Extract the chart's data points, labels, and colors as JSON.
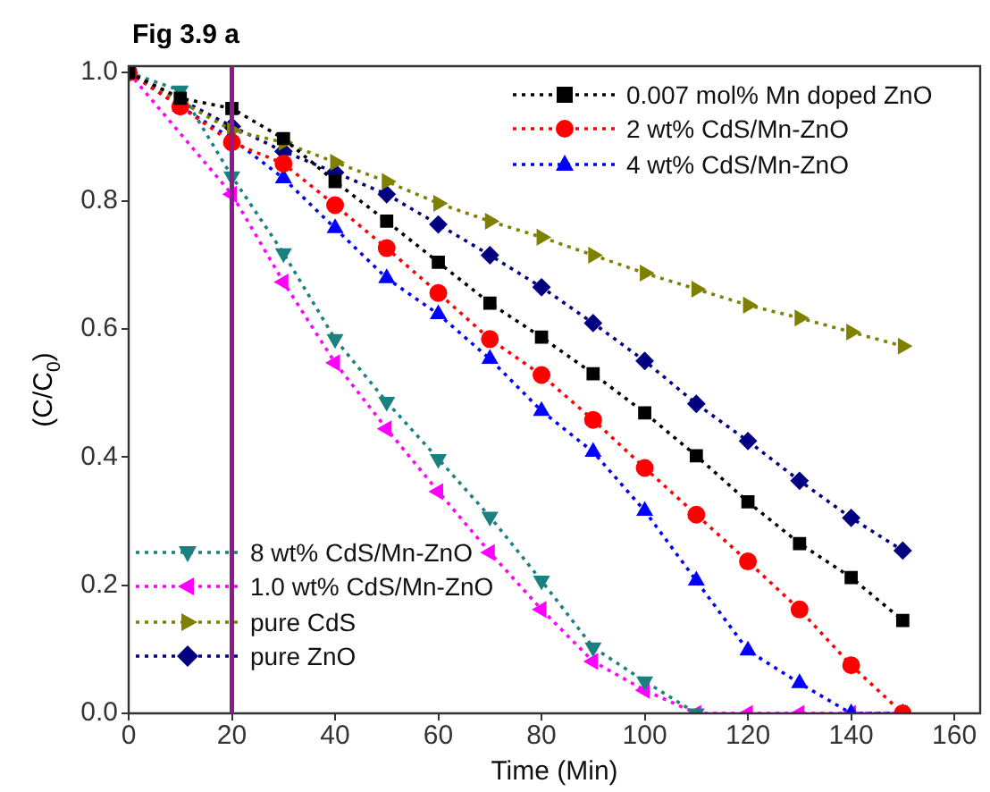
{
  "chart_data": {
    "type": "line",
    "title": "Fig 3.9 a",
    "xlabel": "Time (Min)",
    "ylabel": "(C/C$_{0}$)",
    "x": [
      0,
      10,
      20,
      30,
      40,
      50,
      60,
      70,
      80,
      90,
      100,
      110,
      120,
      130,
      140,
      150
    ],
    "series": [
      {
        "name": "0.007 mol% Mn doped ZnO",
        "color": "#000000",
        "marker": "square",
        "values": [
          1.0,
          0.96,
          0.944,
          0.897,
          0.83,
          0.768,
          0.704,
          0.64,
          0.587,
          0.53,
          0.469,
          0.402,
          0.33,
          0.265,
          0.212,
          0.145
        ]
      },
      {
        "name": "2 wt% CdS/Mn-ZnO",
        "color": "#ff0000",
        "marker": "circle",
        "values": [
          1.0,
          0.947,
          0.891,
          0.858,
          0.793,
          0.726,
          0.656,
          0.584,
          0.528,
          0.458,
          0.383,
          0.31,
          0.237,
          0.162,
          0.075,
          0.0
        ]
      },
      {
        "name": "4 wt% CdS/Mn-ZnO",
        "color": "#0000ff",
        "marker": "triangle",
        "values": [
          1.0,
          0.947,
          0.897,
          0.835,
          0.757,
          0.679,
          0.623,
          0.553,
          0.472,
          0.408,
          0.316,
          0.207,
          0.098,
          0.047,
          0.0,
          0.0
        ]
      },
      {
        "name": "8 wt% CdS/Mn-ZnO",
        "color": "#1a8080",
        "marker": "triangle-down",
        "values": [
          1.0,
          0.972,
          0.838,
          0.718,
          0.584,
          0.486,
          0.397,
          0.307,
          0.207,
          0.103,
          0.05,
          0.0,
          null,
          null,
          null,
          null
        ]
      },
      {
        "name": "1.0 wt% CdS/Mn-ZnO",
        "color": "#ff00ff",
        "marker": "triangle-left",
        "values": [
          1.0,
          null,
          0.81,
          0.673,
          0.547,
          0.444,
          0.346,
          0.251,
          0.162,
          0.081,
          0.036,
          0.0,
          0.0,
          0.0,
          0.0,
          0.0
        ]
      },
      {
        "name": "pure CdS",
        "color": "#808000",
        "marker": "triangle-right",
        "values": [
          1.0,
          null,
          0.91,
          0.891,
          0.86,
          0.83,
          0.796,
          0.768,
          0.743,
          0.715,
          0.687,
          0.662,
          0.637,
          0.617,
          0.595,
          0.573
        ]
      },
      {
        "name": "pure ZnO",
        "color": "#000080",
        "marker": "diamond",
        "values": [
          1.0,
          null,
          0.916,
          0.877,
          0.844,
          0.81,
          0.763,
          0.715,
          0.665,
          0.609,
          0.55,
          0.483,
          0.425,
          0.363,
          0.305,
          0.254
        ]
      }
    ],
    "xlim": [
      0,
      165
    ],
    "xticks": [
      0,
      20,
      40,
      60,
      80,
      100,
      120,
      140,
      160
    ],
    "ylim": [
      0,
      1.01
    ],
    "yticks": [
      {
        "value": 0,
        "label": "0.0"
      },
      {
        "value": 0.2,
        "label": "0.2"
      },
      {
        "value": 0.4,
        "label": "0.4"
      },
      {
        "value": 0.6,
        "label": "0.6"
      },
      {
        "value": 0.8,
        "label": "0.8"
      },
      {
        "value": 1.0,
        "label": "1.0"
      }
    ],
    "ref_lines": [
      {
        "axis": "x",
        "value": 20,
        "color": "#8b1a8b"
      }
    ],
    "grid": false,
    "legend": "top right",
    "line_style": "dotted"
  }
}
